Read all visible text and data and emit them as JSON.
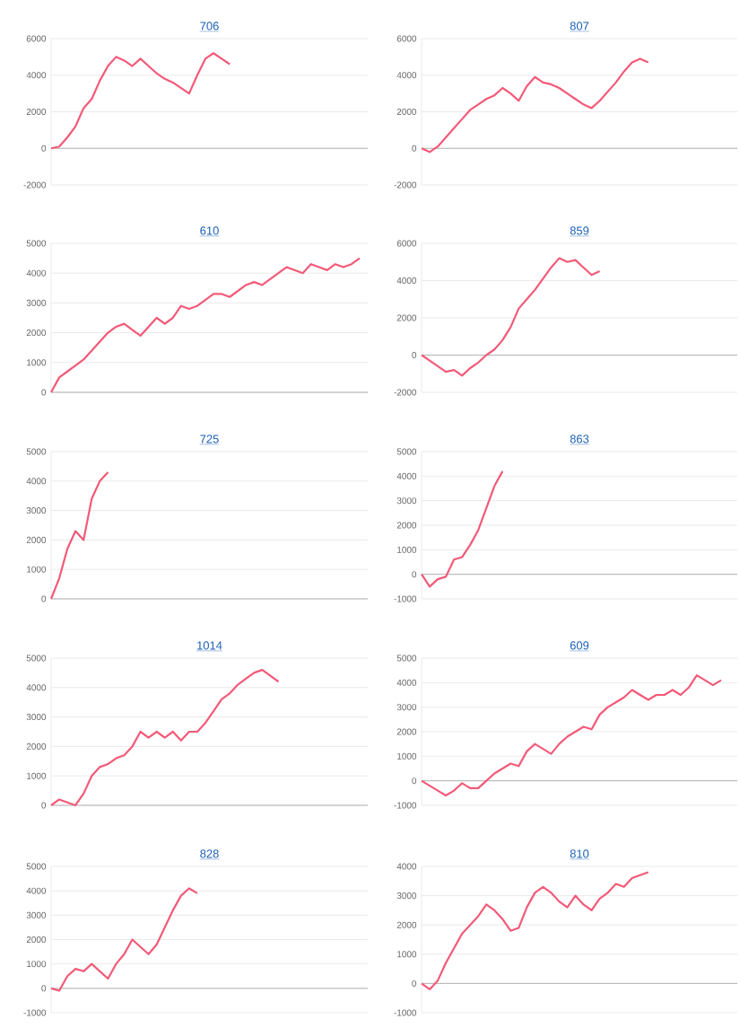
{
  "chart_data": [
    {
      "type": "line",
      "title": "706",
      "categories": [
        null,
        null,
        null,
        null,
        null,
        null,
        null,
        null,
        null,
        null,
        null,
        null,
        null,
        null,
        null,
        null,
        null,
        null,
        null,
        null,
        null,
        null,
        null,
        null,
        null,
        null,
        null,
        null,
        null,
        null,
        null,
        null,
        null,
        null,
        null,
        null,
        null,
        null,
        null,
        null
      ],
      "values": [
        0,
        100,
        600,
        1200,
        2200,
        2700,
        3700,
        4500,
        5000,
        4800,
        4500,
        4900,
        4500,
        4100,
        3800,
        3600,
        3300,
        3000,
        4000,
        4900,
        5200,
        4900,
        4600,
        null,
        null,
        null,
        null,
        null,
        null,
        null,
        null,
        null,
        null,
        null,
        null,
        null,
        null,
        null,
        null,
        null
      ],
      "color": "#f25a78",
      "ylim": [
        -2000,
        6000
      ],
      "yticks": [
        -2000,
        0,
        2000,
        4000,
        6000
      ],
      "grid": "y"
    },
    {
      "type": "line",
      "title": "807",
      "categories": [
        null,
        null,
        null,
        null,
        null,
        null,
        null,
        null,
        null,
        null,
        null,
        null,
        null,
        null,
        null,
        null,
        null,
        null,
        null,
        null,
        null,
        null,
        null,
        null,
        null,
        null,
        null,
        null,
        null,
        null,
        null,
        null,
        null,
        null,
        null,
        null,
        null,
        null,
        null,
        null
      ],
      "values": [
        0,
        -200,
        100,
        600,
        1100,
        1600,
        2100,
        2400,
        2700,
        2900,
        3300,
        3000,
        2600,
        3400,
        3900,
        3600,
        3500,
        3300,
        3000,
        2700,
        2400,
        2200,
        2600,
        3100,
        3600,
        4200,
        4700,
        4900,
        4700,
        null,
        null,
        null,
        null,
        null,
        null,
        null,
        null,
        null,
        null,
        null
      ],
      "color": "#f25a78",
      "ylim": [
        -2000,
        6000
      ],
      "yticks": [
        -2000,
        0,
        2000,
        4000,
        6000
      ],
      "grid": "y"
    },
    {
      "type": "line",
      "title": "610",
      "categories": [
        null,
        null,
        null,
        null,
        null,
        null,
        null,
        null,
        null,
        null,
        null,
        null,
        null,
        null,
        null,
        null,
        null,
        null,
        null,
        null,
        null,
        null,
        null,
        null,
        null,
        null,
        null,
        null,
        null,
        null,
        null,
        null,
        null,
        null,
        null,
        null,
        null,
        null,
        null,
        null
      ],
      "values": [
        0,
        500,
        700,
        900,
        1100,
        1400,
        1700,
        2000,
        2200,
        2300,
        2100,
        1900,
        2200,
        2500,
        2300,
        2500,
        2900,
        2800,
        2900,
        3100,
        3300,
        3300,
        3200,
        3400,
        3600,
        3700,
        3600,
        3800,
        4000,
        4200,
        4100,
        4000,
        4300,
        4200,
        4100,
        4300,
        4200,
        4300,
        4500,
        null
      ],
      "color": "#f25a78",
      "ylim": [
        0,
        5000
      ],
      "yticks": [
        0,
        1000,
        2000,
        3000,
        4000,
        5000
      ],
      "grid": "y"
    },
    {
      "type": "line",
      "title": "859",
      "categories": [
        null,
        null,
        null,
        null,
        null,
        null,
        null,
        null,
        null,
        null,
        null,
        null,
        null,
        null,
        null,
        null,
        null,
        null,
        null,
        null,
        null,
        null,
        null,
        null,
        null,
        null,
        null,
        null,
        null,
        null,
        null,
        null,
        null,
        null,
        null,
        null,
        null,
        null,
        null,
        null
      ],
      "values": [
        0,
        -300,
        -600,
        -900,
        -800,
        -1100,
        -700,
        -400,
        0,
        300,
        800,
        1500,
        2500,
        3000,
        3500,
        4100,
        4700,
        5200,
        5000,
        5100,
        4700,
        4300,
        4500,
        null,
        null,
        null,
        null,
        null,
        null,
        null,
        null,
        null,
        null,
        null,
        null,
        null,
        null,
        null,
        null,
        null
      ],
      "color": "#f25a78",
      "ylim": [
        -2000,
        6000
      ],
      "yticks": [
        -2000,
        0,
        2000,
        4000,
        6000
      ],
      "grid": "y"
    },
    {
      "type": "line",
      "title": "725",
      "categories": [
        null,
        null,
        null,
        null,
        null,
        null,
        null,
        null,
        null,
        null,
        null,
        null,
        null,
        null,
        null,
        null,
        null,
        null,
        null,
        null,
        null,
        null,
        null,
        null,
        null,
        null,
        null,
        null,
        null,
        null,
        null,
        null,
        null,
        null,
        null,
        null,
        null,
        null,
        null,
        null
      ],
      "values": [
        0,
        700,
        1700,
        2300,
        2000,
        3400,
        4000,
        4300,
        null,
        null,
        null,
        null,
        null,
        null,
        null,
        null,
        null,
        null,
        null,
        null,
        null,
        null,
        null,
        null,
        null,
        null,
        null,
        null,
        null,
        null,
        null,
        null,
        null,
        null,
        null,
        null,
        null,
        null,
        null,
        null
      ],
      "color": "#f25a78",
      "ylim": [
        0,
        5000
      ],
      "yticks": [
        0,
        1000,
        2000,
        3000,
        4000,
        5000
      ],
      "grid": "y"
    },
    {
      "type": "line",
      "title": "863",
      "categories": [
        null,
        null,
        null,
        null,
        null,
        null,
        null,
        null,
        null,
        null,
        null,
        null,
        null,
        null,
        null,
        null,
        null,
        null,
        null,
        null,
        null,
        null,
        null,
        null,
        null,
        null,
        null,
        null,
        null,
        null,
        null,
        null,
        null,
        null,
        null,
        null,
        null,
        null,
        null,
        null
      ],
      "values": [
        0,
        -500,
        -200,
        -100,
        600,
        700,
        1200,
        1800,
        2700,
        3600,
        4200,
        null,
        null,
        null,
        null,
        null,
        null,
        null,
        null,
        null,
        null,
        null,
        null,
        null,
        null,
        null,
        null,
        null,
        null,
        null,
        null,
        null,
        null,
        null,
        null,
        null,
        null,
        null,
        null,
        null
      ],
      "color": "#f25a78",
      "ylim": [
        -1000,
        5000
      ],
      "yticks": [
        -1000,
        0,
        1000,
        2000,
        3000,
        4000,
        5000
      ],
      "grid": "y"
    },
    {
      "type": "line",
      "title": "1014",
      "categories": [
        null,
        null,
        null,
        null,
        null,
        null,
        null,
        null,
        null,
        null,
        null,
        null,
        null,
        null,
        null,
        null,
        null,
        null,
        null,
        null,
        null,
        null,
        null,
        null,
        null,
        null,
        null,
        null,
        null,
        null,
        null,
        null,
        null,
        null,
        null,
        null,
        null,
        null,
        null,
        null
      ],
      "values": [
        0,
        200,
        100,
        0,
        400,
        1000,
        1300,
        1400,
        1600,
        1700,
        2000,
        2500,
        2300,
        2500,
        2300,
        2500,
        2200,
        2500,
        2500,
        2800,
        3200,
        3600,
        3800,
        4100,
        4300,
        4500,
        4600,
        4400,
        4200,
        null,
        null,
        null,
        null,
        null,
        null,
        null,
        null,
        null,
        null,
        null
      ],
      "color": "#f25a78",
      "ylim": [
        0,
        5000
      ],
      "yticks": [
        0,
        1000,
        2000,
        3000,
        4000,
        5000
      ],
      "grid": "y"
    },
    {
      "type": "line",
      "title": "609",
      "categories": [
        null,
        null,
        null,
        null,
        null,
        null,
        null,
        null,
        null,
        null,
        null,
        null,
        null,
        null,
        null,
        null,
        null,
        null,
        null,
        null,
        null,
        null,
        null,
        null,
        null,
        null,
        null,
        null,
        null,
        null,
        null,
        null,
        null,
        null,
        null,
        null,
        null,
        null,
        null,
        null
      ],
      "values": [
        0,
        -200,
        -400,
        -600,
        -400,
        -100,
        -300,
        -300,
        0,
        300,
        500,
        700,
        600,
        1200,
        1500,
        1300,
        1100,
        1500,
        1800,
        2000,
        2200,
        2100,
        2700,
        3000,
        3200,
        3400,
        3700,
        3500,
        3300,
        3500,
        3500,
        3700,
        3500,
        3800,
        4300,
        4100,
        3900,
        4100,
        null,
        null
      ],
      "color": "#f25a78",
      "ylim": [
        -1000,
        5000
      ],
      "yticks": [
        -1000,
        0,
        1000,
        2000,
        3000,
        4000,
        5000
      ],
      "grid": "y"
    },
    {
      "type": "line",
      "title": "828",
      "categories": [
        null,
        null,
        null,
        null,
        null,
        null,
        null,
        null,
        null,
        null,
        null,
        null,
        null,
        null,
        null,
        null,
        null,
        null,
        null,
        null,
        null,
        null,
        null,
        null,
        null,
        null,
        null,
        null,
        null,
        null,
        null,
        null,
        null,
        null,
        null,
        null,
        null,
        null,
        null,
        null
      ],
      "values": [
        0,
        -100,
        500,
        800,
        700,
        1000,
        700,
        400,
        1000,
        1400,
        2000,
        1700,
        1400,
        1800,
        2500,
        3200,
        3800,
        4100,
        3900,
        null,
        null,
        null,
        null,
        null,
        null,
        null,
        null,
        null,
        null,
        null,
        null,
        null,
        null,
        null,
        null,
        null,
        null,
        null,
        null,
        null
      ],
      "color": "#f25a78",
      "ylim": [
        -1000,
        5000
      ],
      "yticks": [
        -1000,
        0,
        1000,
        2000,
        3000,
        4000,
        5000
      ],
      "grid": "y"
    },
    {
      "type": "line",
      "title": "810",
      "categories": [
        null,
        null,
        null,
        null,
        null,
        null,
        null,
        null,
        null,
        null,
        null,
        null,
        null,
        null,
        null,
        null,
        null,
        null,
        null,
        null,
        null,
        null,
        null,
        null,
        null,
        null,
        null,
        null,
        null,
        null,
        null,
        null,
        null,
        null,
        null,
        null,
        null,
        null,
        null,
        null
      ],
      "values": [
        0,
        -200,
        100,
        700,
        1200,
        1700,
        2000,
        2300,
        2700,
        2500,
        2200,
        1800,
        1900,
        2600,
        3100,
        3300,
        3100,
        2800,
        2600,
        3000,
        2700,
        2500,
        2900,
        3100,
        3400,
        3300,
        3600,
        3700,
        3800,
        null,
        null,
        null,
        null,
        null,
        null,
        null,
        null,
        null,
        null,
        null
      ],
      "color": "#f25a78",
      "ylim": [
        -1000,
        4000
      ],
      "yticks": [
        -1000,
        0,
        1000,
        2000,
        3000,
        4000
      ],
      "grid": "y"
    }
  ]
}
